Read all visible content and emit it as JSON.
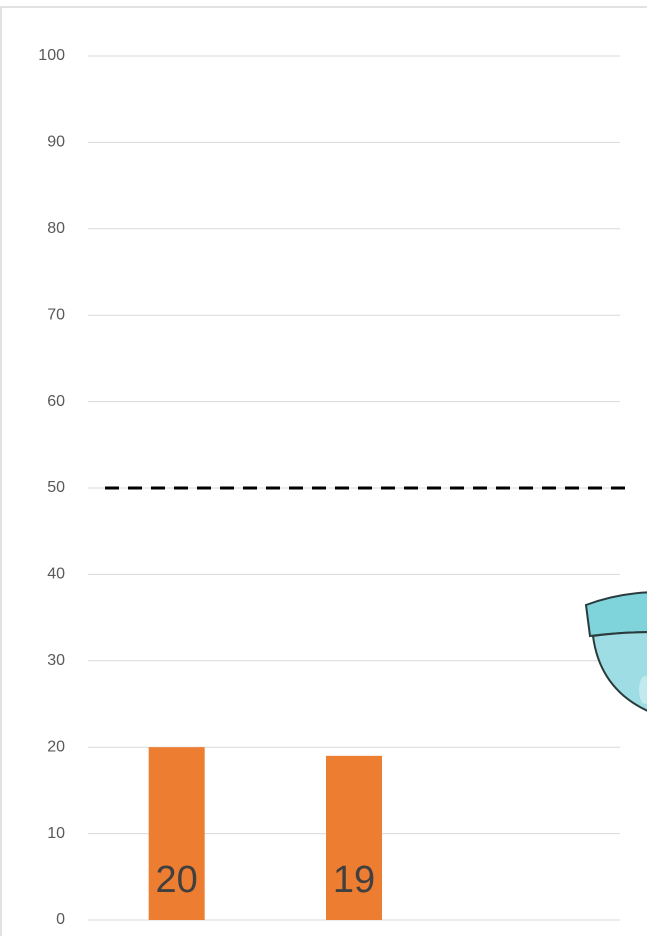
{
  "chart_data": {
    "type": "bar",
    "categories": [
      null,
      null,
      null
    ],
    "values": [
      20,
      19,
      null
    ],
    "color": "#ed7d31",
    "ylim": [
      0,
      100
    ],
    "yticks": [
      0,
      10,
      20,
      30,
      40,
      50,
      60,
      70,
      80,
      90,
      100
    ],
    "grid": true,
    "reference_line": 50,
    "reference_line_color": "#000000"
  }
}
